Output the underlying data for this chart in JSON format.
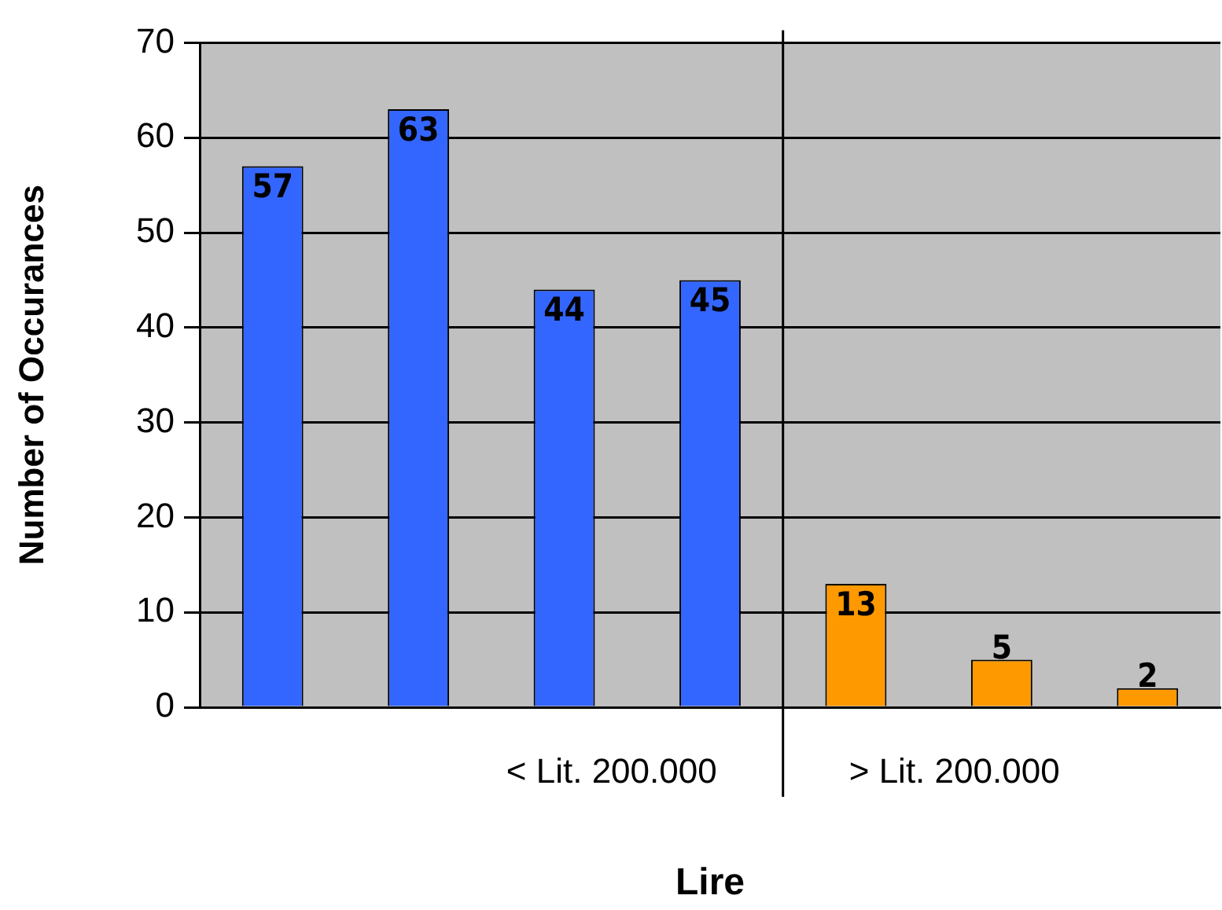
{
  "chart_data": {
    "type": "bar",
    "xlabel": "Lire",
    "ylabel": "Number of Occurances",
    "categories": [
      null,
      null,
      null,
      null,
      null,
      null,
      null
    ],
    "ylim": [
      0,
      70
    ],
    "yticks": [
      0,
      10,
      20,
      30,
      40,
      50,
      60,
      70
    ],
    "grid": "y",
    "data_labels": true,
    "series": [
      {
        "color": "#3366ff",
        "values": [
          57,
          63,
          44,
          45,
          null,
          null,
          null
        ]
      },
      {
        "color": "#ff9900",
        "values": [
          null,
          null,
          null,
          null,
          13,
          5,
          2
        ]
      }
    ],
    "annotations": [
      "< Lit. 200.000",
      "> Lit. 200.000"
    ]
  }
}
